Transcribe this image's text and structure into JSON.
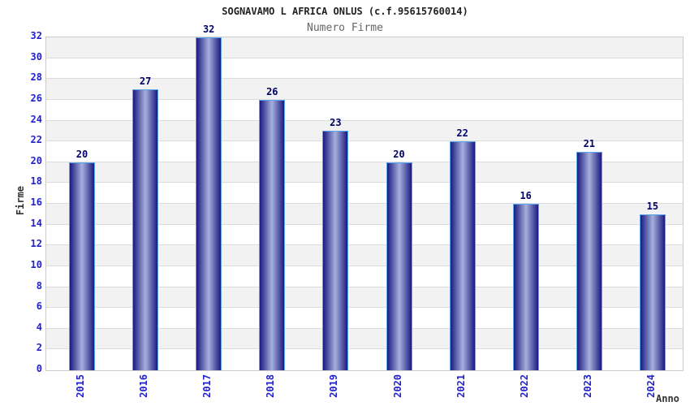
{
  "chart_data": {
    "type": "bar",
    "title": "SOGNAVAMO L AFRICA ONLUS (c.f.95615760014)",
    "subtitle": "Numero Firme",
    "xlabel": "Anno",
    "ylabel": "Firme",
    "categories": [
      "2015",
      "2016",
      "2017",
      "2018",
      "2019",
      "2020",
      "2021",
      "2022",
      "2023",
      "2024"
    ],
    "values": [
      20,
      27,
      32,
      26,
      23,
      20,
      22,
      16,
      21,
      15
    ],
    "ylim": [
      0,
      32
    ],
    "ytick_step": 2,
    "legend_position": "none",
    "grid": "horizontal-bands-alternating",
    "bar_style": "cylinder-gradient",
    "colors": {
      "title": "#222222",
      "subtitle": "#666666",
      "tick_label": "#2222CC",
      "value_label": "#000066",
      "axis_title": "#333333",
      "band_gray": "#F2F2F2",
      "band_white": "#FFFFFF",
      "gridline": "#DCDCDC",
      "plot_border": "#CCCCCC",
      "bar_border": "#5AA7F0",
      "bar_dark": "#1A1A80",
      "bar_light": "#A6B0DC"
    }
  }
}
